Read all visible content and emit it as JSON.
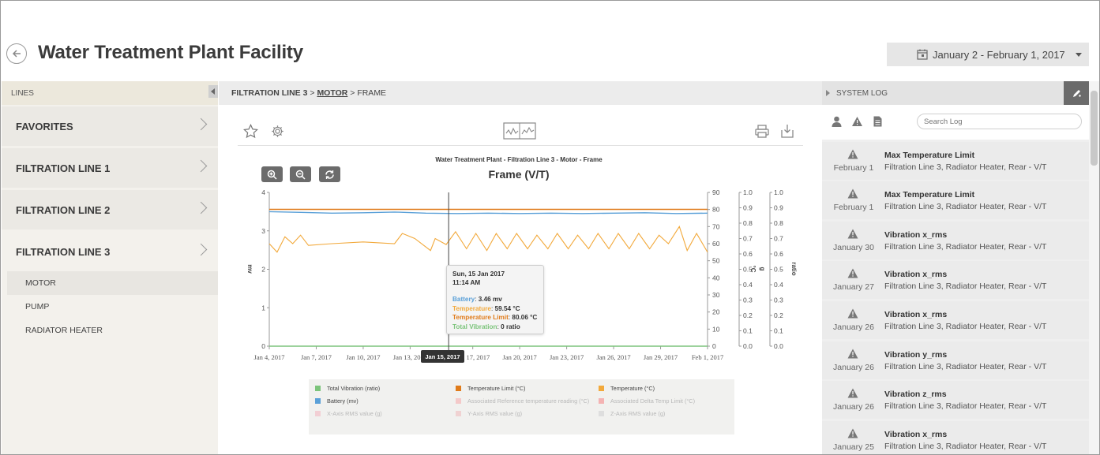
{
  "header": {
    "title": "Water Treatment Plant Facility",
    "date_range": "January 2 - February 1, 2017"
  },
  "sidebar": {
    "heading": "LINES",
    "lines": [
      {
        "label": "FAVORITES"
      },
      {
        "label": "FILTRATION LINE 1"
      },
      {
        "label": "FILTRATION LINE 2"
      },
      {
        "label": "FILTRATION LINE 3"
      }
    ],
    "sub_items": [
      {
        "label": "MOTOR"
      },
      {
        "label": "PUMP"
      },
      {
        "label": "RADIATOR HEATER"
      }
    ]
  },
  "breadcrumb": {
    "line": "FILTRATION LINE 3",
    "sep1": ">",
    "asset": "MOTOR",
    "sep2": ">",
    "current": "FRAME"
  },
  "chart_data": {
    "type": "line",
    "title": "Frame (V/T)",
    "subtitle": "Water Treatment Plant - Filtration Line 3 - Motor - Frame",
    "x_ticks": [
      "Jan 4, 2017",
      "Jan 7, 2017",
      "Jan 10, 2017",
      "Jan 13, 2017",
      "Jan 17, 2017",
      "Jan 20, 2017",
      "Jan 23, 2017",
      "Jan 26, 2017",
      "Jan 29, 2017",
      "Feb 1, 2017"
    ],
    "xlim": [
      "Jan 4, 2017",
      "Feb 1, 2017"
    ],
    "axes": [
      {
        "label": "mv",
        "ticks": [
          "0",
          "1",
          "2",
          "3",
          "4"
        ],
        "range": [
          0,
          4
        ]
      },
      {
        "label": "°C",
        "ticks": [
          "0",
          "10",
          "20",
          "30",
          "40",
          "50",
          "60",
          "70",
          "80",
          "90"
        ],
        "range": [
          0,
          90
        ]
      },
      {
        "label": "g",
        "ticks": [
          "0.0",
          "0.1",
          "0.2",
          "0.3",
          "0.4",
          "0.5",
          "0.6",
          "0.7",
          "0.8",
          "0.9",
          "1.0"
        ],
        "range": [
          0,
          1
        ]
      },
      {
        "label": "ratio",
        "ticks": [
          "0.0",
          "0.1",
          "0.2",
          "0.3",
          "0.4",
          "0.5",
          "0.6",
          "0.7",
          "0.8",
          "0.9",
          "1.0"
        ],
        "range": [
          0,
          1
        ]
      }
    ],
    "series": [
      {
        "name": "Temperature Limit",
        "unit": "°C",
        "color": "#e07b1a",
        "values": [
          [
            4,
            80.06
          ],
          [
            32,
            80.06
          ]
        ]
      },
      {
        "name": "Battery",
        "unit": "mv",
        "color": "#5aa0d8",
        "values": [
          [
            4,
            3.5
          ],
          [
            6,
            3.48
          ],
          [
            8,
            3.46
          ],
          [
            10,
            3.47
          ],
          [
            12,
            3.49
          ],
          [
            14,
            3.46
          ],
          [
            16,
            3.45
          ],
          [
            18,
            3.46
          ],
          [
            20,
            3.45
          ],
          [
            22,
            3.46
          ],
          [
            24,
            3.45
          ],
          [
            26,
            3.46
          ],
          [
            28,
            3.47
          ],
          [
            30,
            3.45
          ],
          [
            32,
            3.46
          ]
        ]
      },
      {
        "name": "Temperature",
        "unit": "°C",
        "color": "#f2a93b",
        "values": [
          [
            4,
            60
          ],
          [
            4.5,
            55
          ],
          [
            5,
            64
          ],
          [
            5.5,
            60
          ],
          [
            6,
            65
          ],
          [
            6.5,
            59
          ],
          [
            8,
            60
          ],
          [
            10,
            61
          ],
          [
            12,
            60
          ],
          [
            12.5,
            66
          ],
          [
            13.3,
            63
          ],
          [
            14.3,
            56
          ],
          [
            14.6,
            63
          ],
          [
            15.3,
            59.5
          ],
          [
            15.9,
            67
          ],
          [
            16.6,
            57
          ],
          [
            17.2,
            66
          ],
          [
            17.9,
            56
          ],
          [
            18.5,
            66
          ],
          [
            19.2,
            57
          ],
          [
            19.8,
            66
          ],
          [
            20.5,
            57
          ],
          [
            21.1,
            65
          ],
          [
            21.8,
            57
          ],
          [
            22.4,
            66
          ],
          [
            23.1,
            57
          ],
          [
            23.7,
            65
          ],
          [
            24.4,
            57
          ],
          [
            25,
            66
          ],
          [
            25.7,
            57
          ],
          [
            26.3,
            66
          ],
          [
            27,
            57
          ],
          [
            27.6,
            66
          ],
          [
            28.3,
            57
          ],
          [
            28.9,
            65
          ],
          [
            29.5,
            60
          ],
          [
            30.2,
            70
          ],
          [
            30.7,
            56
          ],
          [
            31.3,
            66
          ],
          [
            32,
            55
          ]
        ]
      },
      {
        "name": "Total Vibration",
        "unit": "ratio",
        "color": "#7cc47b",
        "values": [
          [
            4,
            0
          ],
          [
            32,
            0
          ]
        ]
      }
    ],
    "cursor": {
      "day": 15.46,
      "label": "Jan 15, 2017",
      "tooltip": {
        "date": "Sun, 15 Jan 2017",
        "time": "11:14 AM",
        "rows": [
          {
            "name": "Battery",
            "value": "3.46 mv",
            "color": "#5aa0d8"
          },
          {
            "name": "Temperature",
            "value": "59.54 °C",
            "color": "#f2a93b"
          },
          {
            "name": "Temperature Limit",
            "value": "80.06 °C",
            "color": "#e07b1a"
          },
          {
            "name": "Total Vibration",
            "value": "0 ratio",
            "color": "#7cc47b"
          }
        ]
      }
    },
    "legend": [
      {
        "label": "Total Vibration (ratio)",
        "color": "#7cc47b",
        "active": true
      },
      {
        "label": "Temperature Limit (°C)",
        "color": "#e07b1a",
        "active": true
      },
      {
        "label": "Temperature (°C)",
        "color": "#f2a93b",
        "active": true
      },
      {
        "label": "Battery (mv)",
        "color": "#5aa0d8",
        "active": true
      },
      {
        "label": "Associated Reference temperature reading (°C)",
        "color": "#f4c9c9",
        "active": false
      },
      {
        "label": "Associated Delta Temp Limit (°C)",
        "color": "#f4b3b3",
        "active": false
      },
      {
        "label": "X-Axis RMS value (g)",
        "color": "#f2cfd4",
        "active": false
      },
      {
        "label": "Y-Axis RMS value (g)",
        "color": "#f0d2d2",
        "active": false
      },
      {
        "label": "Z-Axis RMS value (g)",
        "color": "#dedede",
        "active": false
      }
    ]
  },
  "syslog": {
    "heading": "SYSTEM LOG",
    "search_placeholder": "Search Log",
    "entries": [
      {
        "date": "February 1",
        "title": "Max Temperature Limit",
        "desc": "Filtration Line 3, Radiator Heater, Rear - V/T"
      },
      {
        "date": "February 1",
        "title": "Max Temperature Limit",
        "desc": "Filtration Line 3, Radiator Heater, Rear - V/T"
      },
      {
        "date": "January 30",
        "title": "Vibration x_rms",
        "desc": "Filtration Line 3, Radiator Heater, Rear - V/T"
      },
      {
        "date": "January 27",
        "title": "Vibration x_rms",
        "desc": "Filtration Line 3, Radiator Heater, Rear - V/T"
      },
      {
        "date": "January 26",
        "title": "Vibration x_rms",
        "desc": "Filtration Line 3, Radiator Heater, Rear - V/T"
      },
      {
        "date": "January 26",
        "title": "Vibration y_rms",
        "desc": "Filtration Line 3, Radiator Heater, Rear - V/T"
      },
      {
        "date": "January 26",
        "title": "Vibration z_rms",
        "desc": "Filtration Line 3, Radiator Heater, Rear - V/T"
      },
      {
        "date": "January 25",
        "title": "Vibration x_rms",
        "desc": "Filtration Line 3, Radiator Heater, Rear - V/T"
      }
    ]
  },
  "icons": {
    "back": "back-arrow-icon",
    "calendar": "calendar-icon",
    "favorite": "star-icon",
    "settings": "gear-icon",
    "chart_view": "chart-view-icon",
    "print": "print-icon",
    "download": "download-icon",
    "zoom_in": "zoom-in-icon",
    "zoom_out": "zoom-out-icon",
    "refresh": "refresh-icon",
    "user": "user-icon",
    "warning": "warning-icon",
    "document": "document-icon",
    "edit": "edit-icon"
  }
}
